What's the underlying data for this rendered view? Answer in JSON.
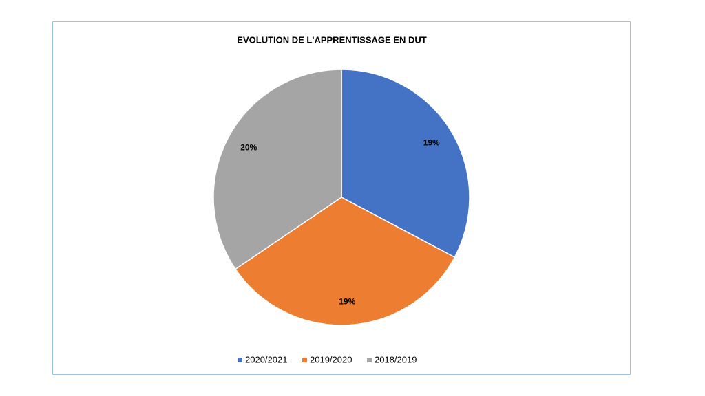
{
  "chart_data": {
    "type": "pie",
    "title": "EVOLUTION DE L'APPRENTISSAGE EN DUT",
    "categories": [
      "2020/2021",
      "2019/2020",
      "2018/2019"
    ],
    "values": [
      19,
      19,
      20
    ],
    "value_labels": [
      "19%",
      "19%",
      "20%"
    ],
    "colors": [
      "#4472c4",
      "#ed7d31",
      "#a5a5a5"
    ],
    "legend": "bottom"
  }
}
